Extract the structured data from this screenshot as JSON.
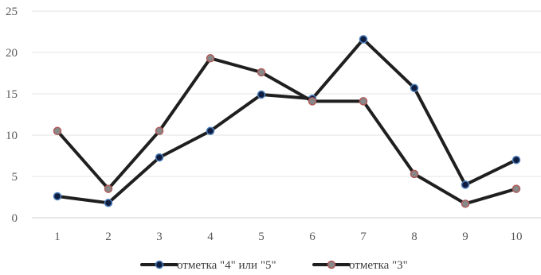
{
  "chart_data": {
    "type": "line",
    "title": "",
    "xlabel": "",
    "ylabel": "",
    "x": [
      1,
      2,
      3,
      4,
      5,
      6,
      7,
      8,
      9,
      10
    ],
    "ylim": [
      0,
      25
    ],
    "yticks": [
      0,
      5,
      10,
      15,
      20,
      25
    ],
    "grid": true,
    "legend_position": "bottom",
    "series": [
      {
        "name": "отметка \"4\" или \"5\"",
        "values": [
          2.6,
          1.8,
          7.3,
          10.5,
          14.9,
          14.4,
          21.6,
          15.7,
          4.0,
          7.0
        ],
        "line_color": "#1f1f1f",
        "marker_color": "#0f1e40",
        "marker_edge": "#4f81bd"
      },
      {
        "name": "отметка \"3\"",
        "values": [
          10.5,
          3.5,
          10.5,
          19.3,
          17.6,
          14.1,
          14.1,
          5.3,
          1.7,
          3.5
        ],
        "line_color": "#1f1f1f",
        "marker_color": "#888888",
        "marker_edge": "#b05a5a"
      }
    ]
  }
}
